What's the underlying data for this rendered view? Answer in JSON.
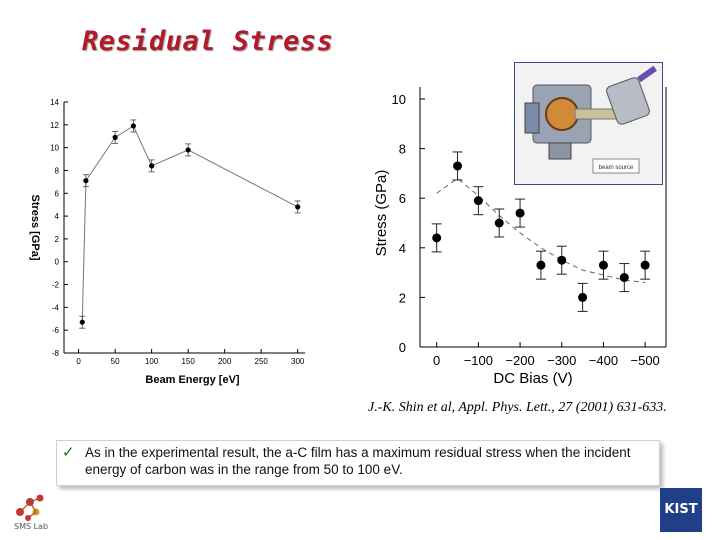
{
  "slide": {
    "title": "Residual Stress",
    "citation": "J.-K. Shin et al, Appl. Phys. Lett., 27 (2001) 631-633.",
    "note": "As in the experimental result, the a-C film has a maximum residual stress when the incident energy of carbon was in the range from 50 to 100 eV.",
    "check_icon": "checkmark-icon",
    "logo_left_label": "SMS Lab",
    "logo_right_label": "KIST",
    "inset_label": "beam source"
  },
  "chart_data": [
    {
      "type": "line",
      "title": "",
      "xlabel": "Beam Energy [eV]",
      "ylabel": "Stress [GPa]",
      "xlim": [
        -20,
        310
      ],
      "ylim": [
        -8,
        14
      ],
      "xticks": [
        0,
        50,
        100,
        150,
        200,
        250,
        300
      ],
      "yticks": [
        -8,
        -6,
        -4,
        -2,
        0,
        2,
        4,
        6,
        8,
        10,
        12,
        14
      ],
      "series": [
        {
          "name": "stress",
          "x": [
            5,
            10,
            50,
            75,
            100,
            150,
            300
          ],
          "y": [
            -5.3,
            7.1,
            10.9,
            11.9,
            8.4,
            9.8,
            4.8
          ]
        }
      ]
    },
    {
      "type": "scatter",
      "title": "",
      "xlabel": "DC Bias (V)",
      "ylabel": "Stress (GPa)",
      "xlim": [
        40,
        -550
      ],
      "ylim": [
        0,
        10
      ],
      "xticks": [
        0,
        -100,
        -200,
        -300,
        -400,
        -500
      ],
      "xtick_labels": [
        "0",
        "−100",
        "−200",
        "−300",
        "−400",
        "−500"
      ],
      "yticks": [
        0,
        2,
        4,
        6,
        8,
        10
      ],
      "series": [
        {
          "name": "measured",
          "x": [
            0,
            -50,
            -100,
            -150,
            -200,
            -250,
            -300,
            -350,
            -400,
            -450,
            -500
          ],
          "y": [
            4.4,
            7.3,
            5.9,
            5.0,
            5.4,
            3.3,
            3.5,
            2.0,
            3.3,
            2.8,
            3.3
          ]
        },
        {
          "name": "trend",
          "style": "dashed",
          "x": [
            0,
            -50,
            -100,
            -150,
            -200,
            -250,
            -300,
            -350,
            -400,
            -450,
            -500
          ],
          "y": [
            6.2,
            6.8,
            6.1,
            5.3,
            4.6,
            4.0,
            3.5,
            3.1,
            2.9,
            2.7,
            2.6
          ]
        }
      ]
    }
  ]
}
